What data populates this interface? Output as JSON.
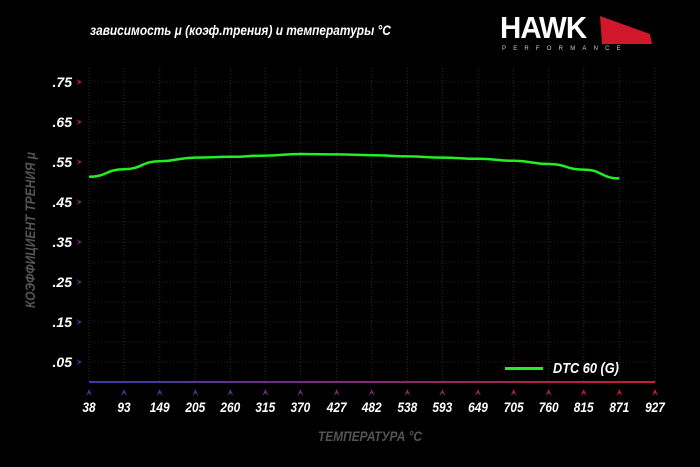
{
  "chart_data": {
    "type": "line",
    "title": "зависимость μ (коэф.трения) и температуры °С",
    "xlabel": "ТЕМПЕРАТУРА °С",
    "ylabel": "КОЭФФИЦИЕНТ ТРЕНИЯ μ",
    "x_ticks": [
      "38",
      "93",
      "149",
      "205",
      "260",
      "315",
      "370",
      "427",
      "482",
      "538",
      "593",
      "649",
      "705",
      "760",
      "815",
      "871",
      "927"
    ],
    "y_ticks": [
      ".75",
      ".65",
      ".55",
      ".45",
      ".35",
      ".25",
      ".15",
      ".05"
    ],
    "xlim": [
      38,
      927
    ],
    "ylim": [
      0,
      0.785
    ],
    "grid": true,
    "legend_position": "bottom-right",
    "series": [
      {
        "name": "DTC 60 (G)",
        "color": "#22ee22",
        "x": [
          38,
          93,
          149,
          205,
          260,
          315,
          370,
          427,
          482,
          538,
          593,
          649,
          705,
          760,
          815,
          871
        ],
        "y": [
          0.513,
          0.532,
          0.552,
          0.561,
          0.563,
          0.566,
          0.57,
          0.569,
          0.567,
          0.564,
          0.561,
          0.558,
          0.553,
          0.545,
          0.531,
          0.509
        ]
      }
    ]
  },
  "logo": {
    "brand": "HAWK",
    "sub": "PERFORMANCE"
  }
}
